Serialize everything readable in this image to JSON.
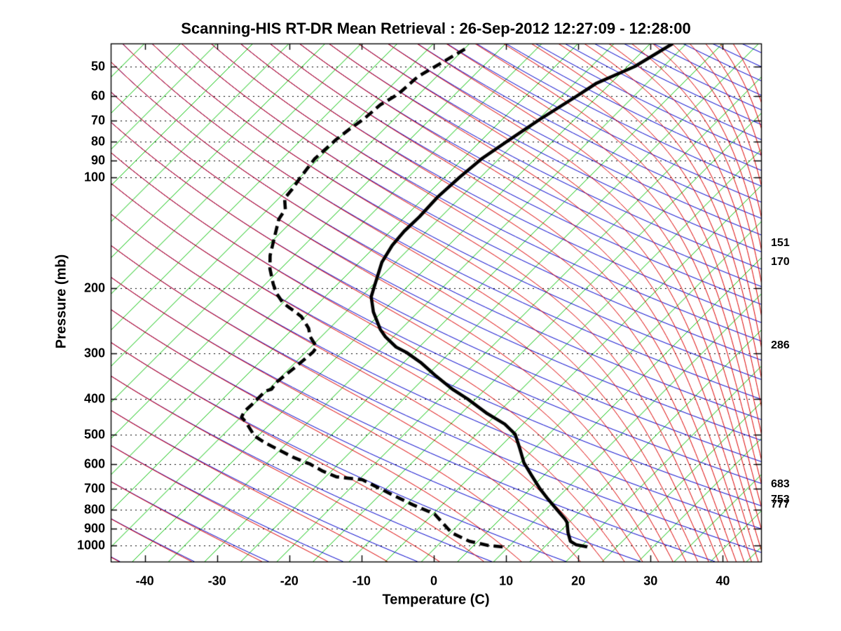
{
  "title": "Scanning-HIS RT-DR Mean Retrieval : 26-Sep-2012 12:27:09 - 12:28:00",
  "axes": {
    "x": {
      "label": "Temperature (C)",
      "ticks": [
        -40,
        -30,
        -20,
        -10,
        0,
        10,
        20,
        30,
        40
      ],
      "range_c": [
        -45,
        45
      ]
    },
    "y": {
      "label": "Pressure (mb)",
      "ticks": [
        50,
        60,
        70,
        80,
        90,
        100,
        200,
        300,
        400,
        500,
        600,
        700,
        800,
        900,
        1000
      ],
      "range_mb": [
        43.3,
        1106
      ],
      "scale": "log"
    }
  },
  "right_pressure_labels": [
    "151",
    "170",
    "286",
    "683",
    "753",
    "777"
  ],
  "colors": {
    "isotherm": "#00c000",
    "dry_adiabat": "#0000cc",
    "moist_adiabat": "#dd0000",
    "profile": "#000000",
    "grid": "#000000",
    "frame": "#000000"
  },
  "background_lines": {
    "skew_deg": 45,
    "isotherms_c": {
      "min": -120,
      "max": 45,
      "step": 5
    },
    "dry_adiabats_theta_k": {
      "min": 200,
      "max": 620,
      "step": 10
    },
    "moist_adiabats_thetae_k": {
      "min": 200,
      "max": 620,
      "step": 10
    }
  },
  "chart_data": {
    "type": "line",
    "variant": "skew-T log-p atmospheric sounding",
    "title": "Scanning-HIS RT-DR Mean Retrieval : 26-Sep-2012 12:27:09 - 12:28:00",
    "xlabel": "Temperature (C)",
    "ylabel": "Pressure (mb)",
    "x_range_c": [
      -45,
      45
    ],
    "p_range_mb": [
      43.3,
      1106
    ],
    "grid": "dotted horizontal lines at pressure ticks",
    "legend": "none",
    "right_axis_annotations_mb": [
      151,
      170,
      286,
      683,
      753,
      777
    ],
    "series": [
      {
        "name": "temperature",
        "line": "solid",
        "color": "#000000",
        "points_p_t": [
          [
            1009,
            15.9
          ],
          [
            996,
            14.1
          ],
          [
            974,
            12.8
          ],
          [
            924,
            11.3
          ],
          [
            865,
            9.7
          ],
          [
            846,
            8.9
          ],
          [
            800,
            6.6
          ],
          [
            749,
            3.9
          ],
          [
            701,
            1.3
          ],
          [
            645,
            -1.7
          ],
          [
            596,
            -4.5
          ],
          [
            546,
            -7.0
          ],
          [
            498,
            -9.7
          ],
          [
            468,
            -12.5
          ],
          [
            438,
            -16.4
          ],
          [
            400,
            -21.1
          ],
          [
            376,
            -24.6
          ],
          [
            344,
            -29.0
          ],
          [
            318,
            -32.7
          ],
          [
            299,
            -36.0
          ],
          [
            289,
            -38.2
          ],
          [
            271,
            -41.1
          ],
          [
            259,
            -42.8
          ],
          [
            232,
            -46.2
          ],
          [
            211,
            -48.6
          ],
          [
            199,
            -49.5
          ],
          [
            170,
            -51.9
          ],
          [
            153,
            -52.8
          ],
          [
            140,
            -53.1
          ],
          [
            128,
            -53.0
          ],
          [
            113,
            -53.2
          ],
          [
            100,
            -52.9
          ],
          [
            89,
            -52.4
          ],
          [
            79,
            -51.2
          ],
          [
            69.5,
            -49.8
          ],
          [
            60,
            -47.9
          ],
          [
            55.6,
            -47.0
          ],
          [
            50,
            -44.0
          ],
          [
            43.3,
            -41.9
          ]
        ]
      },
      {
        "name": "dew_point",
        "line": "dashed",
        "color": "#000000",
        "points_p_t": [
          [
            1009,
            4.2
          ],
          [
            1000,
            2.0
          ],
          [
            974,
            -1.2
          ],
          [
            924,
            -4.8
          ],
          [
            821,
            -9.8
          ],
          [
            776,
            -14.0
          ],
          [
            728,
            -18.3
          ],
          [
            663,
            -24.5
          ],
          [
            651,
            -28.5
          ],
          [
            628,
            -31.2
          ],
          [
            601,
            -33.9
          ],
          [
            596,
            -34.6
          ],
          [
            575,
            -37.3
          ],
          [
            550,
            -40.2
          ],
          [
            526,
            -43.1
          ],
          [
            504,
            -45.5
          ],
          [
            461,
            -48.7
          ],
          [
            448,
            -49.9
          ],
          [
            432,
            -50.3
          ],
          [
            416,
            -50.2
          ],
          [
            400,
            -50.2
          ],
          [
            381,
            -50.2
          ],
          [
            376,
            -49.6
          ],
          [
            360,
            -49.9
          ],
          [
            330,
            -49.4
          ],
          [
            298,
            -49.0
          ],
          [
            289,
            -49.2
          ],
          [
            271,
            -51.5
          ],
          [
            257,
            -52.9
          ],
          [
            239,
            -55.5
          ],
          [
            232,
            -57.0
          ],
          [
            226,
            -58.4
          ],
          [
            219,
            -60.0
          ],
          [
            207,
            -62.1
          ],
          [
            195,
            -63.9
          ],
          [
            177,
            -66.5
          ],
          [
            163,
            -68.3
          ],
          [
            150,
            -69.7
          ],
          [
            130,
            -72.1
          ],
          [
            122,
            -72.6
          ],
          [
            114,
            -74.2
          ],
          [
            108,
            -74.4
          ],
          [
            100,
            -74.9
          ],
          [
            89,
            -75.5
          ],
          [
            79,
            -75.2
          ],
          [
            74,
            -74.8
          ],
          [
            69.3,
            -74.2
          ],
          [
            63.5,
            -73.9
          ],
          [
            59.4,
            -72.9
          ],
          [
            53.3,
            -72.6
          ],
          [
            50,
            -71.6
          ],
          [
            44.8,
            -69.9
          ]
        ]
      }
    ]
  }
}
